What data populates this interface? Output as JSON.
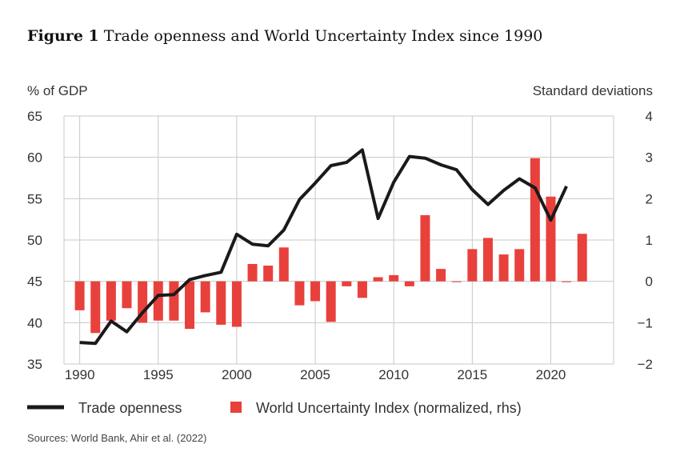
{
  "title": {
    "figure_label": "Figure 1",
    "text": "Trade openness and World Uncertainty Index since 1990"
  },
  "source": "Sources: World Bank, Ahir et al. (2022)",
  "colors": {
    "line": "#1a1a1a",
    "bars": "#e8413c",
    "grid": "#c8c8c8",
    "axis_text": "#333333"
  },
  "chart_data": {
    "type": "bar",
    "title": "Figure 1 Trade openness and World Uncertainty Index since 1990",
    "y_left_label": "% of GDP",
    "y_right_label": "Standard deviations",
    "ylim_left": [
      35,
      65
    ],
    "ylim_right": [
      -2,
      4
    ],
    "xlim": [
      1989,
      2024
    ],
    "x_ticks": [
      "1990",
      "1995",
      "2000",
      "2005",
      "2010",
      "2015",
      "2020"
    ],
    "y_left_ticks": [
      "65",
      "60",
      "55",
      "50",
      "45",
      "40",
      "35"
    ],
    "y_right_ticks": [
      "4",
      "3",
      "2",
      "1",
      "0",
      "−1",
      "−2"
    ],
    "grid": true,
    "legend_position": "bottom",
    "series": [
      {
        "name": "Trade openness",
        "kind": "line",
        "axis": "left",
        "x": [
          1990,
          1991,
          1992,
          1993,
          1994,
          1995,
          1996,
          1997,
          1998,
          1999,
          2000,
          2001,
          2002,
          2003,
          2004,
          2005,
          2006,
          2007,
          2008,
          2009,
          2010,
          2011,
          2012,
          2013,
          2014,
          2015,
          2016,
          2017,
          2018,
          2019,
          2020,
          2021
        ],
        "values": [
          37.6,
          37.5,
          40.2,
          38.9,
          41.2,
          43.3,
          43.4,
          45.2,
          45.7,
          46.1,
          50.7,
          49.5,
          49.3,
          51.2,
          54.9,
          56.9,
          59.0,
          59.4,
          60.9,
          52.6,
          57.0,
          60.1,
          59.9,
          59.1,
          58.5,
          56.1,
          54.3,
          56.0,
          57.4,
          56.3,
          52.4,
          56.5
        ]
      },
      {
        "name": "World Uncertainty Index (normalized, rhs)",
        "kind": "bar",
        "axis": "right",
        "x": [
          1990,
          1991,
          1992,
          1993,
          1994,
          1995,
          1996,
          1997,
          1998,
          1999,
          2000,
          2001,
          2002,
          2003,
          2004,
          2005,
          2006,
          2007,
          2008,
          2009,
          2010,
          2011,
          2012,
          2013,
          2014,
          2015,
          2016,
          2017,
          2018,
          2019,
          2020,
          2021,
          2022
        ],
        "values": [
          -0.7,
          -1.25,
          -0.95,
          -0.65,
          -1.0,
          -0.95,
          -0.95,
          -1.15,
          -0.75,
          -1.05,
          -1.1,
          0.42,
          0.38,
          0.82,
          -0.58,
          -0.48,
          -0.98,
          -0.12,
          -0.4,
          0.1,
          0.15,
          -0.12,
          1.6,
          0.3,
          -0.02,
          0.78,
          1.05,
          0.65,
          0.78,
          2.98,
          2.05,
          -0.02,
          1.15
        ]
      }
    ]
  }
}
